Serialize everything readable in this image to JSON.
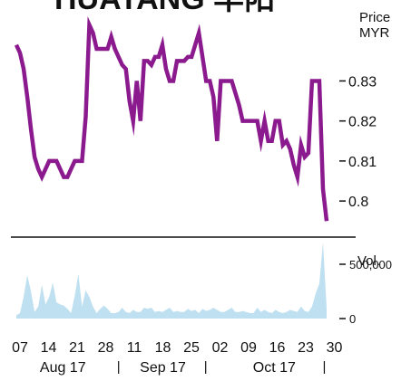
{
  "chart_data": {
    "type": "line",
    "title": "HUAYANG 华阳",
    "price_panel": {
      "unit_label_1": "Price",
      "unit_label_2": "MYR",
      "yticks": [
        {
          "value": 0.83,
          "label": "0.83"
        },
        {
          "value": 0.82,
          "label": "0.82"
        },
        {
          "value": 0.81,
          "label": "0.81"
        },
        {
          "value": 0.8,
          "label": "0.8"
        }
      ],
      "ylim": [
        0.7946,
        0.8457
      ],
      "line_color": "#8a1a8e",
      "series": [
        {
          "values": [
            0.839,
            0.837,
            0.833,
            0.826,
            0.818,
            0.811,
            0.808,
            0.806,
            0.808,
            0.81,
            0.81,
            0.81,
            0.808,
            0.806,
            0.806,
            0.808,
            0.81,
            0.81,
            0.81,
            0.821,
            0.844,
            0.842,
            0.838,
            0.838,
            0.838,
            0.838,
            0.841,
            0.838,
            0.836,
            0.834,
            0.833,
            0.825,
            0.82,
            0.83,
            0.82,
            0.835,
            0.835,
            0.834,
            0.836,
            0.836,
            0.839,
            0.833,
            0.83,
            0.83,
            0.835,
            0.835,
            0.835,
            0.836,
            0.836,
            0.839,
            0.842,
            0.836,
            0.83,
            0.83,
            0.826,
            0.815,
            0.83,
            0.83,
            0.83,
            0.83,
            0.827,
            0.824,
            0.82,
            0.82,
            0.82,
            0.82,
            0.82,
            0.815,
            0.82,
            0.815,
            0.815,
            0.82,
            0.82,
            0.814,
            0.815,
            0.813,
            0.809,
            0.806,
            0.814,
            0.811,
            0.812,
            0.83,
            0.83,
            0.83,
            0.803,
            0.795
          ]
        }
      ]
    },
    "volume_panel": {
      "label": "Vol.",
      "yticks": [
        {
          "value": 500000,
          "label": "500,000"
        },
        {
          "value": 0,
          "label": "0"
        }
      ],
      "ylim": [
        0,
        750000
      ],
      "fill_color": "#bfe0f0",
      "values": [
        30000,
        50000,
        200000,
        400000,
        250000,
        60000,
        110000,
        310000,
        130000,
        200000,
        330000,
        150000,
        130000,
        120000,
        90000,
        50000,
        210000,
        410000,
        110000,
        260000,
        200000,
        110000,
        50000,
        90000,
        120000,
        90000,
        50000,
        50000,
        60000,
        100000,
        60000,
        50000,
        80000,
        60000,
        60000,
        100000,
        90000,
        100000,
        60000,
        70000,
        60000,
        80000,
        100000,
        60000,
        70000,
        60000,
        60000,
        90000,
        70000,
        80000,
        50000,
        90000,
        70000,
        80000,
        100000,
        80000,
        60000,
        60000,
        80000,
        100000,
        60000,
        60000,
        70000,
        60000,
        50000,
        50000,
        100000,
        60000,
        80000,
        60000,
        50000,
        80000,
        60000,
        50000,
        60000,
        80000,
        70000,
        60000,
        110000,
        70000,
        60000,
        110000,
        230000,
        320000,
        700000,
        100000
      ]
    },
    "x_ticks": [
      {
        "index": 0,
        "label": "07"
      },
      {
        "index": 5,
        "label": "14"
      },
      {
        "index": 10,
        "label": "21"
      },
      {
        "index": 15,
        "label": "28"
      },
      {
        "index": 20,
        "label": "11"
      },
      {
        "index": 25,
        "label": "18"
      },
      {
        "index": 30,
        "label": "25"
      },
      {
        "index": 35,
        "label": "02"
      },
      {
        "index": 40,
        "label": "09"
      },
      {
        "index": 45,
        "label": "16"
      },
      {
        "index": 50,
        "label": "23"
      },
      {
        "index": 55,
        "label": "30"
      }
    ],
    "months": [
      {
        "label": "Aug 17",
        "center_tick": 1.5
      },
      {
        "label": "Sep 17",
        "center_tick": 5.0
      },
      {
        "label": "Oct 17",
        "center_tick": 8.9
      }
    ],
    "month_separators": [
      {
        "after_tick": 3.45,
        "label": "|"
      },
      {
        "after_tick": 6.5,
        "label": "|"
      },
      {
        "after_tick": 10.65,
        "label": "|"
      }
    ]
  }
}
